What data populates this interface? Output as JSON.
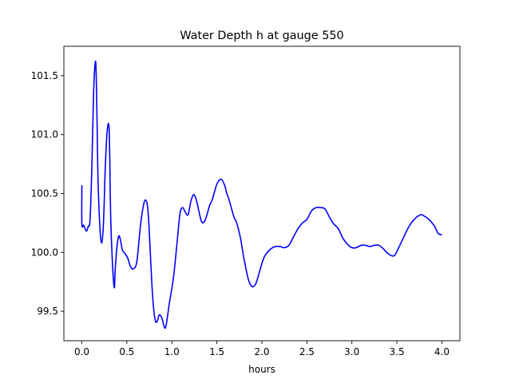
{
  "chart_data": {
    "type": "line",
    "title": "Water Depth h at gauge 550",
    "xlabel": "hours",
    "ylabel": "",
    "xlim": [
      -0.2,
      4.2
    ],
    "ylim": [
      99.25,
      101.75
    ],
    "xticks": [
      0.0,
      0.5,
      1.0,
      1.5,
      2.0,
      2.5,
      3.0,
      3.5,
      4.0
    ],
    "xtick_labels": [
      "0.0",
      "0.5",
      "1.0",
      "1.5",
      "2.0",
      "2.5",
      "3.0",
      "3.5",
      "4.0"
    ],
    "yticks": [
      99.5,
      100.0,
      100.5,
      101.0,
      101.5
    ],
    "ytick_labels": [
      "99.5",
      "100.0",
      "100.5",
      "101.0",
      "101.5"
    ],
    "grid": false,
    "series": [
      {
        "color": "#0000ff",
        "x": [
          0.0,
          0.0,
          0.02,
          0.05,
          0.07,
          0.09,
          0.11,
          0.13,
          0.15,
          0.16,
          0.17,
          0.18,
          0.2,
          0.22,
          0.24,
          0.26,
          0.28,
          0.3,
          0.31,
          0.32,
          0.34,
          0.36,
          0.37,
          0.39,
          0.41,
          0.43,
          0.45,
          0.48,
          0.51,
          0.54,
          0.57,
          0.61,
          0.65,
          0.69,
          0.72,
          0.74,
          0.76,
          0.78,
          0.8,
          0.82,
          0.84,
          0.86,
          0.89,
          0.91,
          0.93,
          0.95,
          0.97,
          0.99,
          1.02,
          1.06,
          1.09,
          1.12,
          1.15,
          1.18,
          1.21,
          1.24,
          1.27,
          1.3,
          1.33,
          1.36,
          1.39,
          1.42,
          1.45,
          1.5,
          1.55,
          1.59,
          1.61,
          1.63,
          1.66,
          1.69,
          1.72,
          1.76,
          1.8,
          1.85,
          1.89,
          1.93,
          1.96,
          1.99,
          2.02,
          2.05,
          2.1,
          2.15,
          2.2,
          2.25,
          2.3,
          2.35,
          2.4,
          2.45,
          2.5,
          2.55,
          2.6,
          2.65,
          2.7,
          2.75,
          2.78,
          2.8,
          2.85,
          2.9,
          2.95,
          3.0,
          3.05,
          3.1,
          3.15,
          3.2,
          3.25,
          3.3,
          3.35,
          3.4,
          3.45,
          3.48,
          3.52,
          3.57,
          3.62,
          3.67,
          3.72,
          3.77,
          3.8,
          3.84,
          3.88,
          3.92,
          3.96,
          4.0
        ],
        "y": [
          100.57,
          100.24,
          100.23,
          100.18,
          100.22,
          100.27,
          100.7,
          101.35,
          101.62,
          101.48,
          101.05,
          100.6,
          100.22,
          100.08,
          100.25,
          100.72,
          101.02,
          101.08,
          100.8,
          100.3,
          99.9,
          99.7,
          99.85,
          100.05,
          100.14,
          100.1,
          100.02,
          99.99,
          99.95,
          99.88,
          99.86,
          99.92,
          100.22,
          100.42,
          100.43,
          100.3,
          100.0,
          99.7,
          99.5,
          99.41,
          99.42,
          99.47,
          99.44,
          99.38,
          99.36,
          99.45,
          99.56,
          99.65,
          99.8,
          100.1,
          100.33,
          100.38,
          100.34,
          100.32,
          100.43,
          100.49,
          100.45,
          100.35,
          100.26,
          100.26,
          100.32,
          100.4,
          100.45,
          100.58,
          100.62,
          100.56,
          100.5,
          100.46,
          100.38,
          100.3,
          100.25,
          100.13,
          99.95,
          99.77,
          99.71,
          99.73,
          99.8,
          99.88,
          99.95,
          99.99,
          100.03,
          100.05,
          100.05,
          100.04,
          100.06,
          100.13,
          100.2,
          100.25,
          100.28,
          100.35,
          100.38,
          100.38,
          100.37,
          100.3,
          100.26,
          100.24,
          100.2,
          100.12,
          100.07,
          100.04,
          100.04,
          100.06,
          100.06,
          100.05,
          100.06,
          100.06,
          100.03,
          99.99,
          99.97,
          99.98,
          100.04,
          100.12,
          100.2,
          100.26,
          100.3,
          100.32,
          100.31,
          100.29,
          100.26,
          100.22,
          100.16,
          100.15
        ]
      }
    ]
  }
}
